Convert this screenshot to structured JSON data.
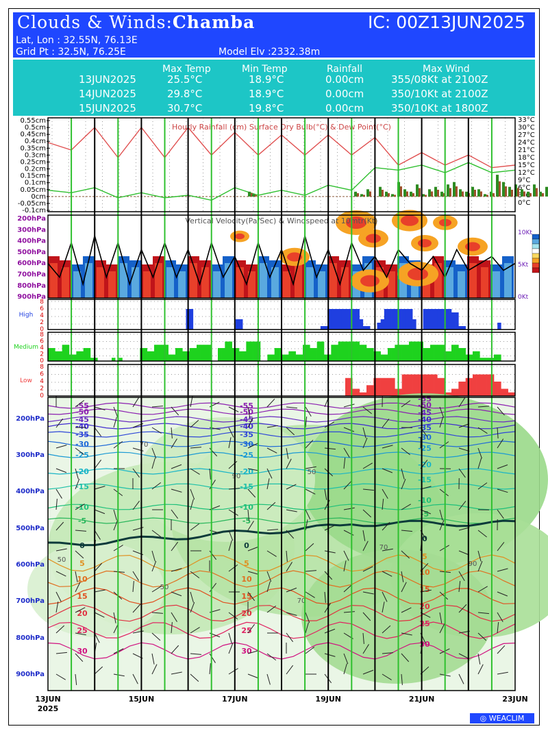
{
  "header": {
    "title_prefix": "Clouds & Winds:",
    "station": "Chamba",
    "ic": "IC: 00Z13JUN2025",
    "latlon": "Lat, Lon : 32.55N, 76.13E",
    "gridpt": "Grid Pt  : 32.5N, 76.25E",
    "model_elv": "Model Elv :2332.38m"
  },
  "summary": {
    "headers": [
      "Max Temp",
      "Min Temp",
      "Rainfall",
      "Max Wind"
    ],
    "rows": [
      {
        "date": "13JUN2025",
        "max": "25.5°C",
        "min": "18.9°C",
        "rain": "0.00cm",
        "wind": "355/08Kt at 2100Z"
      },
      {
        "date": "14JUN2025",
        "max": "29.8°C",
        "min": "18.9°C",
        "rain": "0.00cm",
        "wind": "350/10Kt at 2100Z"
      },
      {
        "date": "15JUN2025",
        "max": "30.7°C",
        "min": "19.8°C",
        "rain": "0.00cm",
        "wind": "350/10Kt at 1800Z"
      }
    ]
  },
  "chart_data": [
    {
      "type": "line",
      "panel": "rain-temp",
      "title": "Hourly Rainfall (cm)    Surface Dry Bulb(°C)    & Dew Point(°C)",
      "left_ticks": [
        "0.55cm",
        "0.5cm",
        "0.45cm",
        "0.4cm",
        "0.35cm",
        "0.3cm",
        "0.25cm",
        "0.2cm",
        "0.15cm",
        "0.1cm",
        "0.05cm",
        "0cm",
        "-0.05cm",
        "-0.1cm"
      ],
      "right_ticks": [
        "33°C",
        "30°C",
        "27°C",
        "24°C",
        "21°C",
        "18°C",
        "15°C",
        "12°C",
        "9°C",
        "6°C",
        "3°C",
        "0°C"
      ],
      "x_days": [
        0,
        0.5,
        1,
        1.5,
        2,
        2.5,
        3,
        3.5,
        4,
        4.5,
        5,
        5.5,
        6,
        6.5,
        7,
        7.5,
        8,
        8.5,
        9,
        9.5,
        10
      ],
      "dry_bulb": [
        24,
        21,
        30,
        18,
        30,
        18,
        30,
        19,
        28,
        19,
        27,
        19,
        27,
        19,
        26,
        15,
        20,
        15,
        19,
        14,
        15
      ],
      "dew_point": [
        5,
        4,
        6,
        2,
        4,
        2,
        3,
        1,
        6,
        3,
        5,
        3,
        7,
        5,
        14,
        13,
        15,
        12,
        16,
        12,
        13
      ],
      "rain_series": [
        {
          "name": "rain",
          "color": "#2e8b22"
        },
        {
          "name": "rain-alt",
          "color": "#a0522d"
        }
      ]
    },
    {
      "type": "heatmap",
      "panel": "vertical-velocity",
      "title": "Vertical Velocity(Pa/Sec) & Windspeed at 10mtr(Kt)",
      "levels": [
        "200hPa",
        "300hPa",
        "400hPa",
        "500hPa",
        "600hPa",
        "700hPa",
        "800hPa",
        "900hPa"
      ],
      "right_ticks": [
        "10Kt",
        "5Kt",
        "0Kt"
      ],
      "wind_kt": [
        5,
        3,
        8,
        2,
        9,
        3,
        8,
        2,
        7,
        3,
        8,
        3,
        7,
        2,
        8,
        3,
        6,
        2,
        8,
        3,
        7,
        2,
        9,
        3,
        7,
        2,
        8,
        4,
        6,
        3,
        7,
        5,
        4,
        6,
        3,
        7,
        4,
        5,
        6,
        4,
        5
      ]
    },
    {
      "type": "bar",
      "panel": "cloud-high",
      "label": "High",
      "yticks": [
        "8",
        "6",
        "4",
        "2",
        "0"
      ],
      "color": "#1f3fe0",
      "values": [
        0,
        0,
        0,
        0,
        0,
        0,
        0,
        0,
        0,
        0,
        0,
        0,
        0,
        0,
        0,
        0,
        0,
        0,
        0,
        0,
        0,
        0,
        0,
        0,
        0,
        0,
        0,
        0,
        0,
        0,
        0,
        0,
        0,
        0,
        0,
        0,
        0,
        0,
        0,
        6,
        6,
        0,
        0,
        0,
        0,
        0,
        0,
        0,
        0,
        0,
        0,
        0,
        0,
        3,
        3,
        0,
        0,
        0,
        0,
        0,
        0,
        0,
        0,
        0,
        0,
        0,
        0,
        0,
        0,
        0,
        0,
        0,
        0,
        0,
        0,
        0,
        0,
        1,
        1,
        6,
        6,
        6,
        6,
        6,
        6,
        6,
        6,
        6,
        3,
        1,
        1,
        0,
        0,
        2,
        3,
        6,
        6,
        6,
        6,
        6,
        6,
        6,
        6,
        3,
        0,
        0,
        6,
        6,
        6,
        6,
        6,
        6,
        6,
        6,
        5,
        5,
        1,
        1,
        0,
        0,
        0,
        0,
        0,
        0,
        0,
        0,
        0,
        2,
        0,
        0,
        0,
        0
      ]
    },
    {
      "type": "bar",
      "panel": "cloud-medium",
      "label": "Medium",
      "yticks": [
        "8",
        "6",
        "4",
        "2",
        "0"
      ],
      "color": "#1ed21e",
      "values": [
        4,
        4,
        3,
        3,
        5,
        5,
        2,
        2,
        3,
        3,
        4,
        4,
        1,
        1,
        0,
        0,
        0,
        0,
        1,
        0,
        1,
        0,
        0,
        0,
        0,
        0,
        4,
        4,
        3,
        3,
        5,
        5,
        5,
        5,
        2,
        2,
        4,
        4,
        3,
        3,
        4,
        4,
        5,
        5,
        5,
        5,
        0,
        0,
        4,
        4,
        6,
        6,
        4,
        4,
        3,
        3,
        6,
        6,
        6,
        6,
        0,
        0,
        2,
        2,
        4,
        4,
        2,
        2,
        3,
        3,
        2,
        2,
        5,
        5,
        4,
        4,
        6,
        6,
        2,
        2,
        5,
        5,
        6,
        6,
        6,
        6,
        6,
        6,
        5,
        5,
        4,
        4,
        3,
        3,
        2,
        2,
        4,
        4,
        5,
        5,
        5,
        5,
        6,
        6,
        6,
        6,
        4,
        4,
        5,
        5,
        5,
        5,
        3,
        3,
        5,
        5,
        4,
        4,
        2,
        2,
        3,
        3,
        1,
        1,
        1,
        1,
        2,
        2,
        0,
        0,
        0,
        0
      ]
    },
    {
      "type": "bar",
      "panel": "cloud-low",
      "label": "Low",
      "yticks": [
        "8",
        "6",
        "4",
        "2",
        "0"
      ],
      "color": "#f04040",
      "values": [
        0,
        0,
        0,
        0,
        0,
        0,
        0,
        0,
        0,
        0,
        0,
        0,
        0,
        0,
        0,
        0,
        0,
        0,
        0,
        0,
        0,
        0,
        0,
        0,
        0,
        0,
        0,
        0,
        0,
        0,
        0,
        0,
        0,
        0,
        0,
        0,
        0,
        0,
        0,
        0,
        0,
        0,
        0,
        0,
        0,
        0,
        0,
        0,
        0,
        0,
        0,
        0,
        0,
        0,
        0,
        0,
        0,
        0,
        0,
        0,
        0,
        0,
        0,
        0,
        0,
        0,
        0,
        0,
        0,
        0,
        0,
        0,
        0,
        0,
        0,
        0,
        0,
        0,
        0,
        0,
        0,
        0,
        0,
        0,
        5,
        5,
        2,
        2,
        1,
        1,
        3,
        3,
        5,
        5,
        5,
        5,
        5,
        5,
        2,
        2,
        6,
        6,
        6,
        6,
        6,
        6,
        6,
        6,
        6,
        6,
        5,
        5,
        1,
        1,
        2,
        2,
        4,
        4,
        5,
        5,
        6,
        6,
        6,
        6,
        6,
        6,
        4,
        4,
        2,
        2,
        1,
        1
      ]
    },
    {
      "type": "line",
      "panel": "cross-section",
      "levels": [
        "200hPa",
        "300hPa",
        "400hPa",
        "500hPa",
        "600hPa",
        "700hPa",
        "800hPa",
        "900hPa"
      ],
      "x_tick_labels": [
        "13JUN",
        "15JUN",
        "17JUN",
        "19JUN",
        "21JUN",
        "23JUN"
      ],
      "year": "2025",
      "isotherm_labels": [
        "-55",
        "-50",
        "-45",
        "-40",
        "-35",
        "-30",
        "-25",
        "-20",
        "-15",
        "-10",
        "-5",
        "0",
        "5",
        "10",
        "15",
        "20",
        "25",
        "30"
      ],
      "rh_labels": [
        "50",
        "70",
        "90"
      ]
    }
  ],
  "footer": {
    "brand": "WEACLIM",
    "brand_icon": "circle-o-icon"
  }
}
